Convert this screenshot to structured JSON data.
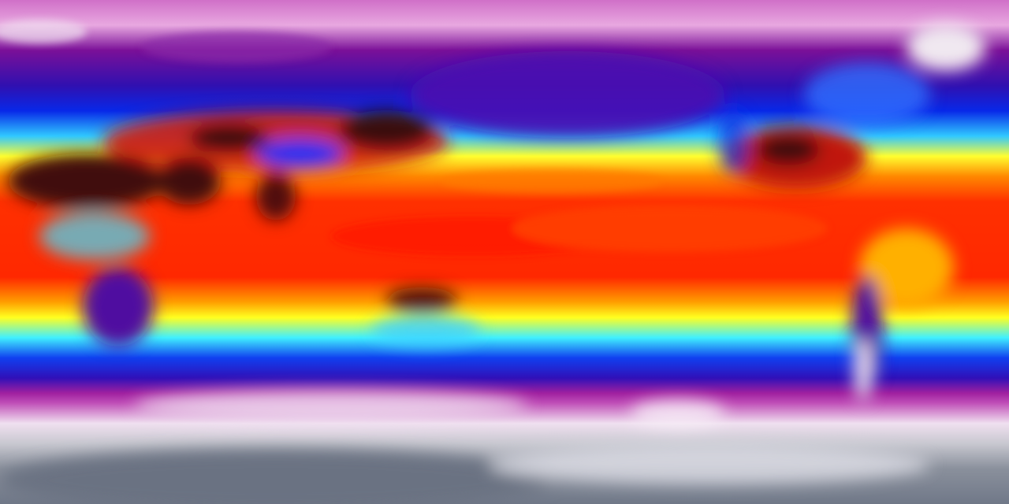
{
  "map": {
    "projection": "equirectangular",
    "variable": "temperature",
    "colormap": [
      "#7f7f8f",
      "#e8e0ea",
      "#d070c8",
      "#8a1ea0",
      "#3a10b0",
      "#0818e0",
      "#20a0ff",
      "#40f0ff",
      "#ffff20",
      "#ffa000",
      "#ff3000",
      "#d01010",
      "#3a1010"
    ],
    "colors": {
      "polar_cold": "#7a8090",
      "ice_white": "#ece4ee",
      "magenta": "#c040b0",
      "purple": "#6a10a8",
      "blue": "#1020e8",
      "cyan": "#40e8ff",
      "yellow": "#ffff30",
      "orange": "#ff9000",
      "red": "#ff2a00",
      "hot_dark": "#3a0c0c"
    }
  }
}
